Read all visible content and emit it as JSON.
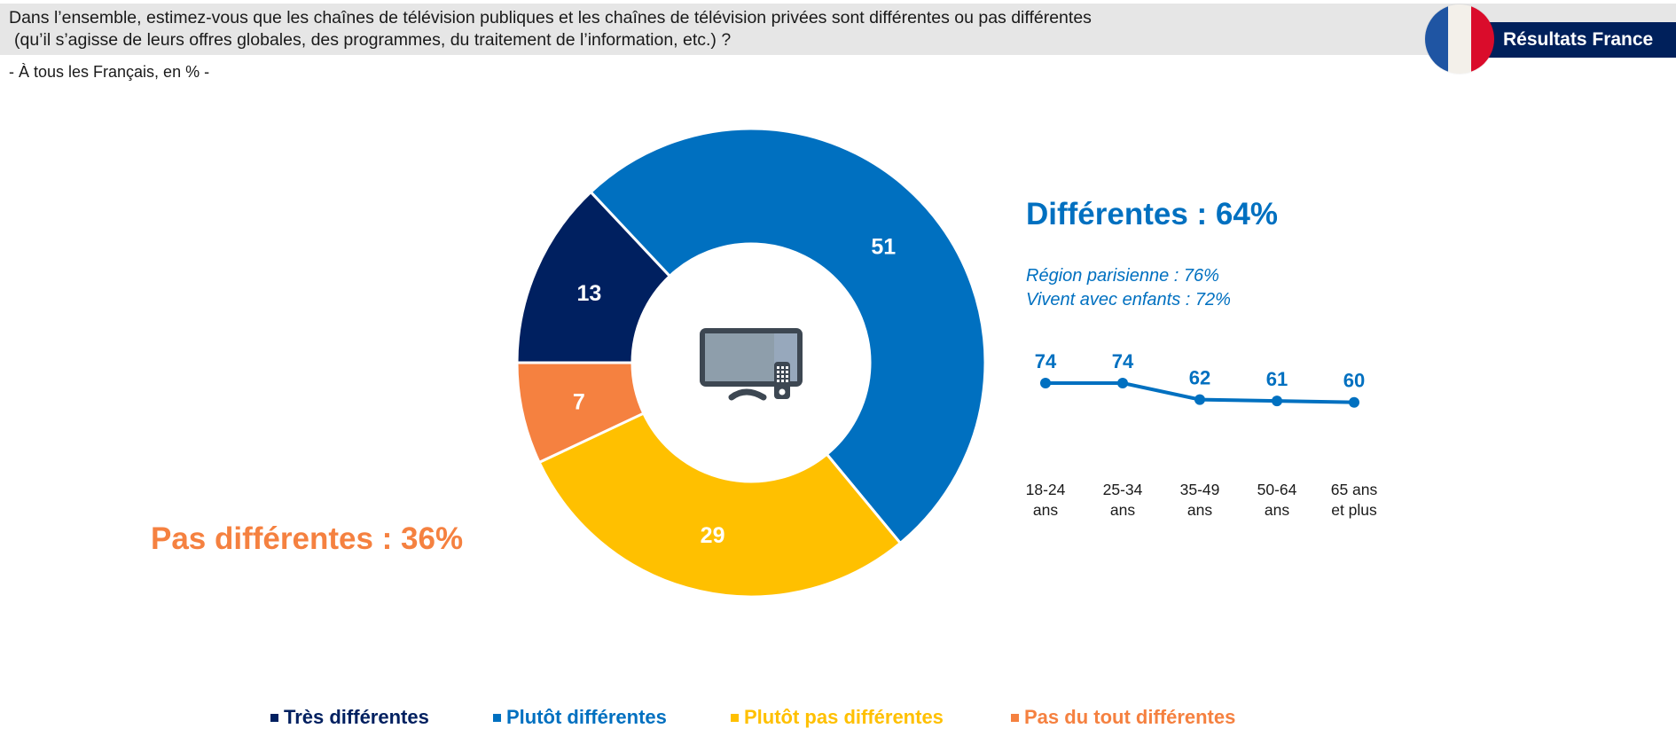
{
  "header": {
    "question_line1": "Dans l’ensemble, estimez-vous que les chaînes de télévision publiques et les chaînes de télévision privées sont différentes ou pas différentes",
    "question_line2": "(qu’il s’agisse de leurs offres globales, des programmes, du traitement de l’information, etc.) ?",
    "subtitle": "- À tous les Français, en % -",
    "banner_label": "Résultats France",
    "flag_icon": "france-flag-icon",
    "flag_colors": [
      "#1f55a3",
      "#f3f0ea",
      "#da0c2b"
    ]
  },
  "summary": {
    "differentes": "Différentes : 64%",
    "pas_differentes": "Pas différentes : 36%",
    "highlights": [
      "Région parisienne : 76%",
      "Vivent avec enfants : 72%"
    ]
  },
  "center_icon": "television-remote-icon",
  "chart_data": [
    {
      "type": "pie",
      "subtype": "donut",
      "title": "",
      "unit": "%",
      "categories": [
        "Très différentes",
        "Plutôt différentes",
        "Plutôt pas différentes",
        "Pas du tout différentes"
      ],
      "values": [
        13,
        51,
        29,
        7
      ],
      "colors": [
        "#002060",
        "#0070c0",
        "#ffc000",
        "#f58140"
      ],
      "start": "9 o'clock, clockwise",
      "legend": {
        "position": "bottom",
        "entries": [
          "Très différentes",
          "Plutôt différentes",
          "Plutôt pas différentes",
          "Pas du tout différentes"
        ]
      }
    },
    {
      "type": "line",
      "title": "Différentes, par âge",
      "categories": [
        "18-24 ans",
        "25-34 ans",
        "35-49 ans",
        "50-64 ans",
        "65 ans et plus"
      ],
      "category_lines": [
        [
          "18-24",
          "ans"
        ],
        [
          "25-34",
          "ans"
        ],
        [
          "35-49",
          "ans"
        ],
        [
          "50-64",
          "ans"
        ],
        [
          "65 ans",
          "et plus"
        ]
      ],
      "values": [
        74,
        74,
        62,
        61,
        60
      ],
      "color": "#0070c0",
      "grid": false,
      "yaxis_visible": false
    }
  ]
}
